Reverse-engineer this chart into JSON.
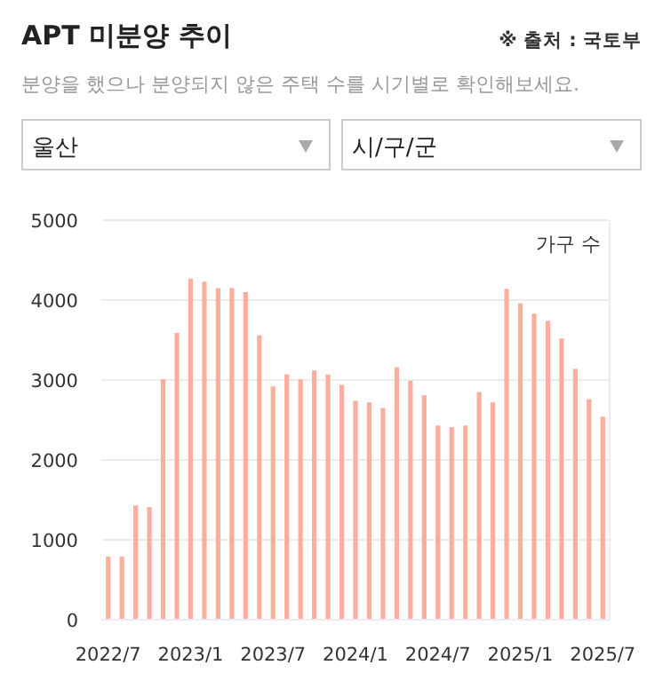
{
  "chart_data": {
    "type": "bar",
    "title": "APT 미분양 추이",
    "subtitle": "분양을 했으나 분양되지 않은 주택 수를 시기별로 확인해보세요.",
    "annotations": [
      "※ 출처 : 국토부",
      "울산",
      "시/구/군"
    ],
    "ylabel": "가구 수",
    "categories": [
      "2022/7",
      null,
      null,
      null,
      null,
      null,
      "2023/1",
      null,
      null,
      null,
      null,
      null,
      "2023/7",
      null,
      null,
      null,
      null,
      null,
      "2024/1",
      null,
      null,
      null,
      null,
      null,
      "2024/7",
      null,
      null,
      null,
      null,
      null,
      "2025/1",
      null,
      null,
      null,
      null,
      null,
      "2025/7"
    ],
    "values": [
      790,
      790,
      1430,
      1410,
      3010,
      3590,
      4270,
      4230,
      4150,
      4150,
      4100,
      3560,
      2920,
      3070,
      3010,
      3120,
      3070,
      2940,
      2740,
      2720,
      2650,
      3160,
      2990,
      2810,
      2430,
      2410,
      2430,
      2850,
      2720,
      4140,
      3960,
      3830,
      3740,
      3520,
      3140,
      2760,
      2540
    ],
    "color": "#fbae9e",
    "ylim": [
      0,
      5000
    ],
    "yticks": [
      0,
      1000,
      2000,
      3000,
      4000,
      5000
    ],
    "grid": "y"
  }
}
